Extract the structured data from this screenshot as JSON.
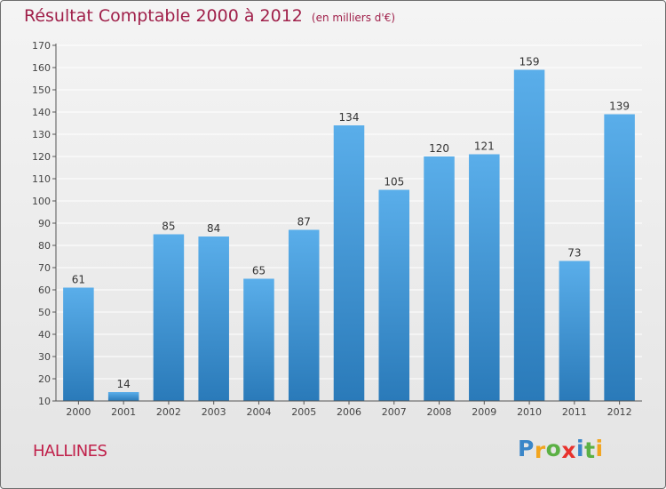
{
  "title": "Résultat Comptable 2000 à 2012",
  "subtitle": "(en milliers d'€)",
  "commune": "HALLINES",
  "logo": {
    "text": "Proxiti",
    "letters": [
      "P",
      "r",
      "o",
      "x",
      "i",
      "t",
      "i"
    ],
    "colors": [
      "#3a86c8",
      "#f2a51f",
      "#5bb044",
      "#e8322d",
      "#3a86c8",
      "#5bb044",
      "#f2a51f"
    ]
  },
  "colors": {
    "title": "#a0204a",
    "bar_top": "#5aaeea",
    "bar_bottom": "#2a7ab9",
    "axis": "#555555",
    "grid": "#ffffff"
  },
  "chart_data": {
    "type": "bar",
    "title": "Résultat Comptable 2000 à 2012",
    "subtitle": "(en milliers d'€)",
    "xlabel": "",
    "ylabel": "",
    "categories": [
      "2000",
      "2001",
      "2002",
      "2003",
      "2004",
      "2005",
      "2006",
      "2007",
      "2008",
      "2009",
      "2010",
      "2011",
      "2012"
    ],
    "values": [
      61,
      14,
      85,
      84,
      65,
      87,
      134,
      105,
      120,
      121,
      159,
      73,
      139
    ],
    "ylim": [
      10,
      170
    ],
    "yticks": [
      10,
      20,
      30,
      40,
      50,
      60,
      70,
      80,
      90,
      100,
      110,
      120,
      130,
      140,
      150,
      160,
      170
    ],
    "grid": true
  }
}
